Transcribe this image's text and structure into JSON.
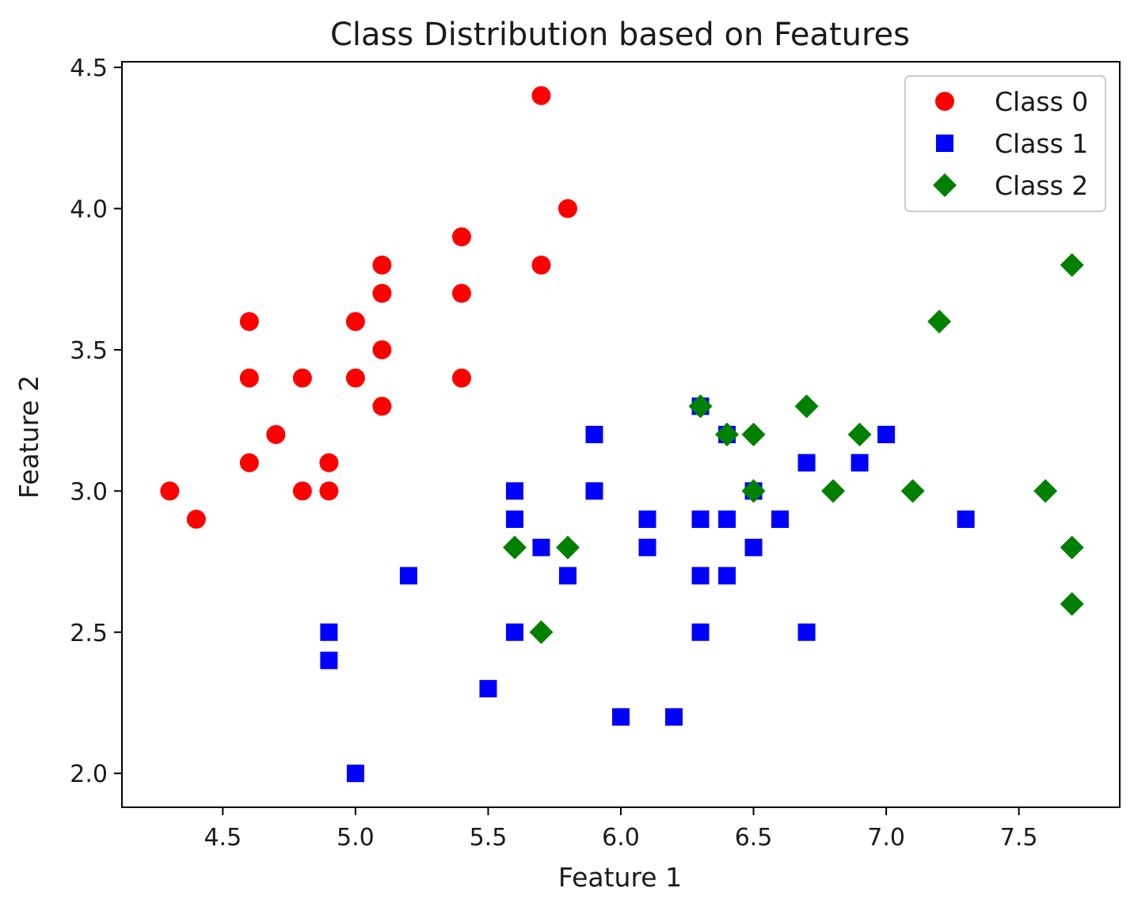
{
  "chart_data": {
    "type": "scatter",
    "title": "Class Distribution based on Features",
    "xlabel": "Feature 1",
    "ylabel": "Feature 2",
    "xlim": [
      4.12,
      7.88
    ],
    "ylim": [
      1.88,
      4.52
    ],
    "xticks": [
      4.5,
      5.0,
      5.5,
      6.0,
      6.5,
      7.0,
      7.5
    ],
    "xtick_labels": [
      "4.5",
      "5.0",
      "5.5",
      "6.0",
      "6.5",
      "7.0",
      "7.5"
    ],
    "yticks": [
      2.0,
      2.5,
      3.0,
      3.5,
      4.0,
      4.5
    ],
    "ytick_labels": [
      "2.0",
      "2.5",
      "3.0",
      "3.5",
      "4.0",
      "4.5"
    ],
    "grid": false,
    "legend_position": "top-right",
    "series": [
      {
        "name": "Class 0",
        "marker": "circle",
        "color": "#ff0000",
        "points": [
          [
            5.7,
            4.4
          ],
          [
            5.8,
            4.0
          ],
          [
            5.4,
            3.9
          ],
          [
            5.1,
            3.8
          ],
          [
            5.7,
            3.8
          ],
          [
            5.1,
            3.7
          ],
          [
            5.4,
            3.7
          ],
          [
            4.6,
            3.6
          ],
          [
            5.0,
            3.6
          ],
          [
            5.1,
            3.5
          ],
          [
            4.6,
            3.4
          ],
          [
            4.8,
            3.4
          ],
          [
            5.0,
            3.4
          ],
          [
            5.4,
            3.4
          ],
          [
            5.1,
            3.3
          ],
          [
            4.7,
            3.2
          ],
          [
            4.6,
            3.1
          ],
          [
            4.9,
            3.1
          ],
          [
            4.3,
            3.0
          ],
          [
            4.8,
            3.0
          ],
          [
            4.9,
            3.0
          ],
          [
            4.4,
            2.9
          ]
        ]
      },
      {
        "name": "Class 1",
        "marker": "square",
        "color": "#0000ff",
        "points": [
          [
            6.3,
            3.3
          ],
          [
            5.9,
            3.2
          ],
          [
            6.4,
            3.2
          ],
          [
            7.0,
            3.2
          ],
          [
            6.7,
            3.1
          ],
          [
            6.9,
            3.1
          ],
          [
            5.6,
            3.0
          ],
          [
            5.9,
            3.0
          ],
          [
            6.5,
            3.0
          ],
          [
            5.6,
            2.9
          ],
          [
            6.1,
            2.9
          ],
          [
            6.3,
            2.9
          ],
          [
            6.4,
            2.9
          ],
          [
            6.6,
            2.9
          ],
          [
            7.3,
            2.9
          ],
          [
            5.7,
            2.8
          ],
          [
            6.1,
            2.8
          ],
          [
            6.5,
            2.8
          ],
          [
            5.2,
            2.7
          ],
          [
            5.8,
            2.7
          ],
          [
            6.3,
            2.7
          ],
          [
            6.4,
            2.7
          ],
          [
            4.9,
            2.5
          ],
          [
            5.6,
            2.5
          ],
          [
            6.3,
            2.5
          ],
          [
            6.7,
            2.5
          ],
          [
            4.9,
            2.4
          ],
          [
            5.5,
            2.3
          ],
          [
            6.0,
            2.2
          ],
          [
            6.2,
            2.2
          ],
          [
            5.0,
            2.0
          ]
        ]
      },
      {
        "name": "Class 2",
        "marker": "diamond",
        "color": "#008000",
        "points": [
          [
            7.7,
            3.8
          ],
          [
            7.2,
            3.6
          ],
          [
            6.3,
            3.3
          ],
          [
            6.7,
            3.3
          ],
          [
            6.4,
            3.2
          ],
          [
            6.5,
            3.2
          ],
          [
            6.9,
            3.2
          ],
          [
            6.5,
            3.0
          ],
          [
            6.8,
            3.0
          ],
          [
            7.1,
            3.0
          ],
          [
            7.6,
            3.0
          ],
          [
            5.6,
            2.8
          ],
          [
            5.8,
            2.8
          ],
          [
            7.7,
            2.8
          ],
          [
            7.7,
            2.6
          ],
          [
            5.7,
            2.5
          ]
        ]
      }
    ]
  }
}
